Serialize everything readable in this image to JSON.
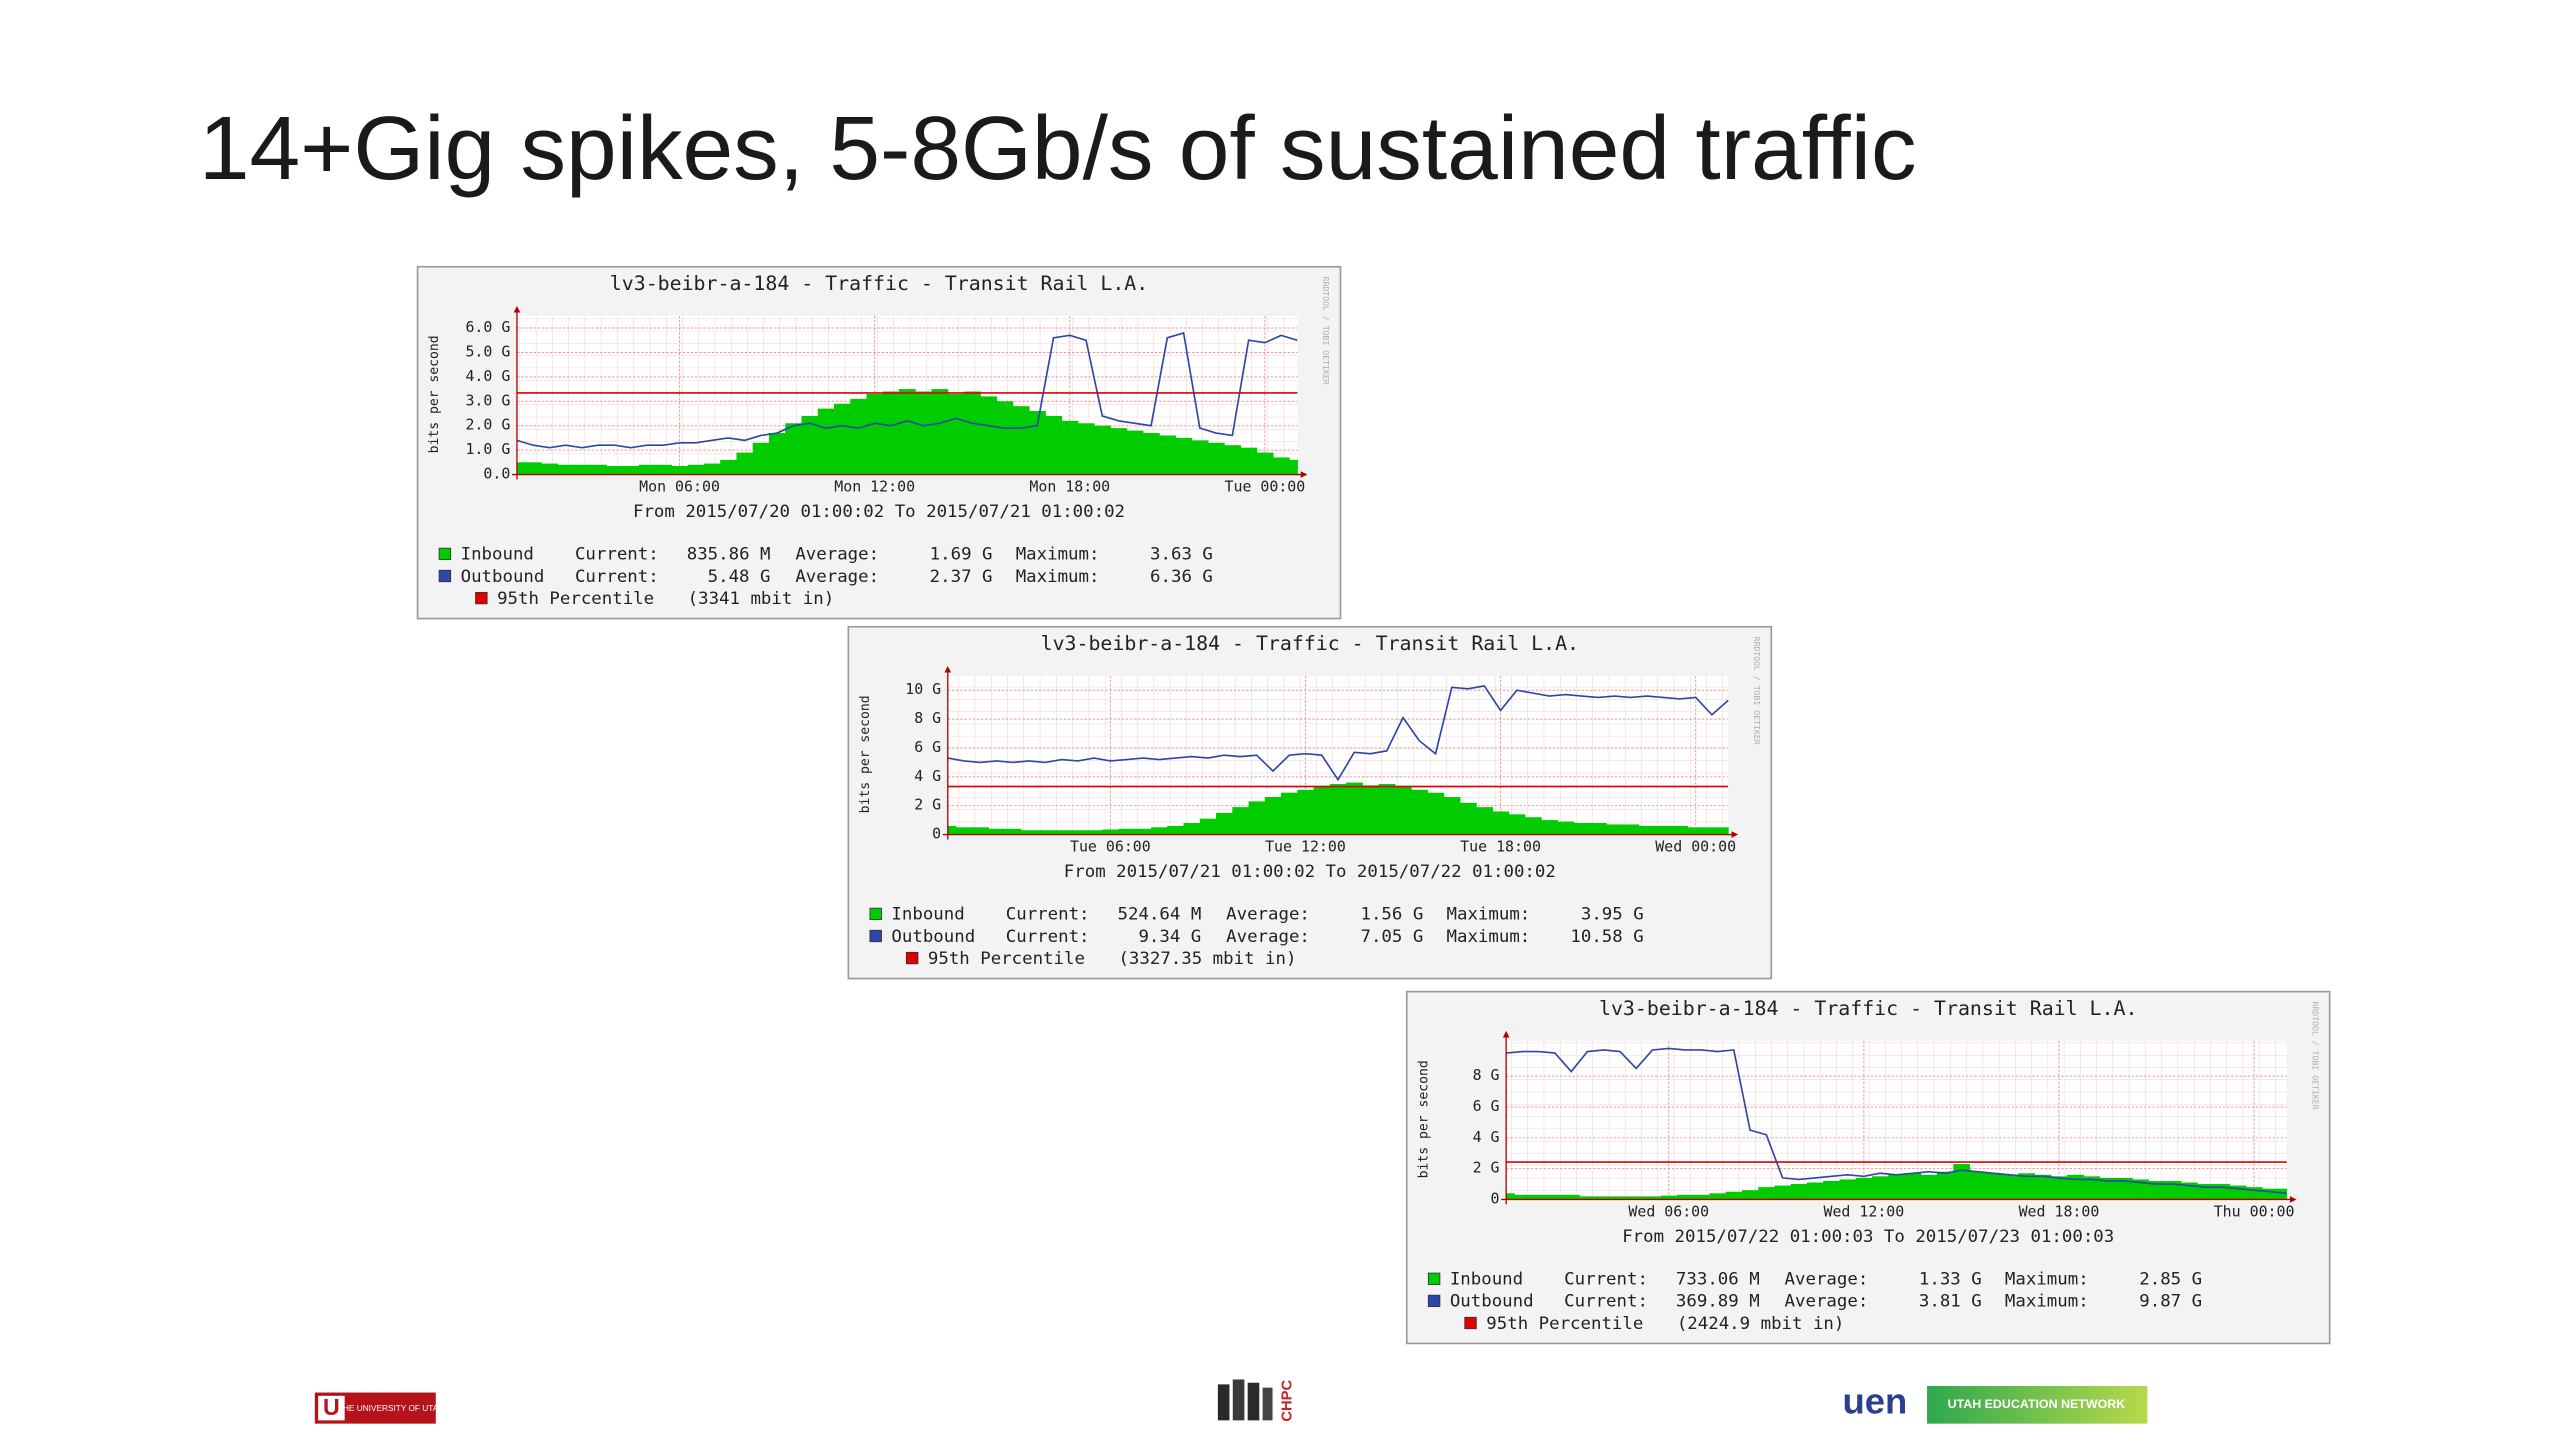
{
  "title": "14+Gig spikes, 5-8Gb/s of sustained traffic",
  "chart_data": [
    {
      "type": "area",
      "title": "lv3-beibr-a-184 - Traffic - Transit Rail L.A.",
      "subtitle": "From 2015/07/20 01:00:02 To 2015/07/21 01:00:02",
      "y_label": "bits per second",
      "watermark": "RRDTOOL / TOBI OETIKER",
      "x": [
        0,
        0.5,
        1,
        1.5,
        2,
        2.5,
        3,
        3.5,
        4,
        4.5,
        5,
        5.5,
        6,
        6.5,
        7,
        7.5,
        8,
        8.5,
        9,
        9.5,
        10,
        10.5,
        11,
        11.5,
        12,
        12.5,
        13,
        13.5,
        14,
        14.5,
        15,
        15.5,
        16,
        16.5,
        17,
        17.5,
        18,
        18.5,
        19,
        19.5,
        20,
        20.5,
        21,
        21.5,
        22,
        22.5,
        23,
        23.5,
        24
      ],
      "xlim": [
        0,
        24
      ],
      "xticks": [
        {
          "value": 5,
          "label": "Mon 06:00"
        },
        {
          "value": 11,
          "label": "Mon 12:00"
        },
        {
          "value": 17,
          "label": "Mon 18:00"
        },
        {
          "value": 23,
          "label": "Tue 00:00"
        }
      ],
      "ylim": [
        0,
        6.5
      ],
      "yticks": [
        {
          "value": 0,
          "label": "0.0"
        },
        {
          "value": 1,
          "label": "1.0 G"
        },
        {
          "value": 2,
          "label": "2.0 G"
        },
        {
          "value": 3,
          "label": "3.0 G"
        },
        {
          "value": 4,
          "label": "4.0 G"
        },
        {
          "value": 5,
          "label": "5.0 G"
        },
        {
          "value": 6,
          "label": "6.0 G"
        }
      ],
      "grid": true,
      "series": [
        {
          "name": "Inbound",
          "color": "#00cc00",
          "style": "area",
          "values": [
            0.5,
            0.5,
            0.45,
            0.4,
            0.4,
            0.4,
            0.35,
            0.35,
            0.4,
            0.4,
            0.35,
            0.4,
            0.45,
            0.6,
            0.9,
            1.3,
            1.7,
            2.1,
            2.4,
            2.7,
            2.9,
            3.1,
            3.3,
            3.4,
            3.5,
            3.4,
            3.5,
            3.3,
            3.4,
            3.2,
            3.0,
            2.8,
            2.6,
            2.4,
            2.2,
            2.1,
            2.0,
            1.9,
            1.8,
            1.7,
            1.6,
            1.5,
            1.4,
            1.3,
            1.2,
            1.1,
            0.9,
            0.7,
            0.6
          ]
        },
        {
          "name": "Outbound",
          "color": "#2b47a8",
          "style": "line",
          "values": [
            1.4,
            1.2,
            1.1,
            1.2,
            1.1,
            1.2,
            1.2,
            1.1,
            1.2,
            1.2,
            1.3,
            1.3,
            1.4,
            1.5,
            1.4,
            1.6,
            1.7,
            2.0,
            2.1,
            1.9,
            2.0,
            1.9,
            2.1,
            2.0,
            2.2,
            2.0,
            2.1,
            2.3,
            2.1,
            2.0,
            1.9,
            1.9,
            2.0,
            5.6,
            5.7,
            5.5,
            2.4,
            2.2,
            2.1,
            2.0,
            5.6,
            5.8,
            1.9,
            1.7,
            1.6,
            5.5,
            5.4,
            5.7,
            5.5
          ]
        }
      ],
      "percentile": {
        "name": "95th Percentile",
        "label": "(3341 mbit in)",
        "value": 3.341,
        "color": "#e00000"
      },
      "legend_stats": [
        [
          "Current:",
          "835.86 M",
          "Average:",
          "1.69 G",
          "Maximum:",
          "3.63 G"
        ],
        [
          "Current:",
          "5.48 G",
          "Average:",
          "2.37 G",
          "Maximum:",
          "6.36 G"
        ]
      ]
    },
    {
      "type": "area",
      "title": "lv3-beibr-a-184 - Traffic - Transit Rail L.A.",
      "subtitle": "From 2015/07/21 01:00:02 To 2015/07/22 01:00:02",
      "y_label": "bits per second",
      "watermark": "RRDTOOL / TOBI OETIKER",
      "x": [
        0,
        0.5,
        1,
        1.5,
        2,
        2.5,
        3,
        3.5,
        4,
        4.5,
        5,
        5.5,
        6,
        6.5,
        7,
        7.5,
        8,
        8.5,
        9,
        9.5,
        10,
        10.5,
        11,
        11.5,
        12,
        12.5,
        13,
        13.5,
        14,
        14.5,
        15,
        15.5,
        16,
        16.5,
        17,
        17.5,
        18,
        18.5,
        19,
        19.5,
        20,
        20.5,
        21,
        21.5,
        22,
        22.5,
        23,
        23.5,
        24
      ],
      "xlim": [
        0,
        24
      ],
      "xticks": [
        {
          "value": 5,
          "label": "Tue 06:00"
        },
        {
          "value": 11,
          "label": "Tue 12:00"
        },
        {
          "value": 17,
          "label": "Tue 18:00"
        },
        {
          "value": 23,
          "label": "Wed 00:00"
        }
      ],
      "ylim": [
        0,
        11
      ],
      "yticks": [
        0,
        {
          "value": 2,
          "label": "2 G"
        },
        {
          "value": 4,
          "label": "4 G"
        },
        {
          "value": 6,
          "label": "6 G"
        },
        {
          "value": 8,
          "label": "8 G"
        },
        {
          "value": 10,
          "label": "10 G"
        }
      ],
      "grid": true,
      "series": [
        {
          "name": "Inbound",
          "color": "#00cc00",
          "style": "area",
          "values": [
            0.6,
            0.5,
            0.5,
            0.4,
            0.4,
            0.3,
            0.3,
            0.3,
            0.3,
            0.3,
            0.35,
            0.4,
            0.4,
            0.5,
            0.6,
            0.8,
            1.1,
            1.5,
            1.9,
            2.3,
            2.6,
            2.9,
            3.1,
            3.3,
            3.5,
            3.6,
            3.4,
            3.5,
            3.3,
            3.1,
            2.9,
            2.6,
            2.2,
            1.9,
            1.6,
            1.4,
            1.2,
            1.0,
            0.9,
            0.8,
            0.8,
            0.7,
            0.7,
            0.6,
            0.6,
            0.6,
            0.5,
            0.5,
            0.5
          ]
        },
        {
          "name": "Outbound",
          "color": "#2b47a8",
          "style": "line",
          "values": [
            5.3,
            5.1,
            5.0,
            5.1,
            5.0,
            5.1,
            5.0,
            5.2,
            5.1,
            5.3,
            5.1,
            5.2,
            5.3,
            5.2,
            5.3,
            5.4,
            5.3,
            5.5,
            5.4,
            5.5,
            4.4,
            5.5,
            5.6,
            5.5,
            3.8,
            5.7,
            5.6,
            5.8,
            8.1,
            6.5,
            5.6,
            10.2,
            10.1,
            10.3,
            8.6,
            10.0,
            9.8,
            9.6,
            9.7,
            9.6,
            9.5,
            9.6,
            9.5,
            9.6,
            9.5,
            9.4,
            9.5,
            8.3,
            9.3
          ]
        }
      ],
      "percentile": {
        "name": "95th Percentile",
        "label": "(3327.35 mbit in)",
        "value": 3.32735,
        "color": "#e00000"
      },
      "legend_stats": [
        [
          "Current:",
          "524.64 M",
          "Average:",
          "1.56 G",
          "Maximum:",
          "3.95 G"
        ],
        [
          "Current:",
          "9.34 G",
          "Average:",
          "7.05 G",
          "Maximum:",
          "10.58 G"
        ]
      ]
    },
    {
      "type": "area",
      "title": "lv3-beibr-a-184 - Traffic - Transit Rail L.A.",
      "subtitle": "From 2015/07/22 01:00:03 To 2015/07/23 01:00:03",
      "y_label": "bits per second",
      "watermark": "RRDTOOL / TOBI OETIKER",
      "x": [
        0,
        0.5,
        1,
        1.5,
        2,
        2.5,
        3,
        3.5,
        4,
        4.5,
        5,
        5.5,
        6,
        6.5,
        7,
        7.5,
        8,
        8.5,
        9,
        9.5,
        10,
        10.5,
        11,
        11.5,
        12,
        12.5,
        13,
        13.5,
        14,
        14.5,
        15,
        15.5,
        16,
        16.5,
        17,
        17.5,
        18,
        18.5,
        19,
        19.5,
        20,
        20.5,
        21,
        21.5,
        22,
        22.5,
        23,
        23.5,
        24
      ],
      "xlim": [
        0,
        24
      ],
      "xticks": [
        {
          "value": 5,
          "label": "Wed 06:00"
        },
        {
          "value": 11,
          "label": "Wed 12:00"
        },
        {
          "value": 17,
          "label": "Wed 18:00"
        },
        {
          "value": 23,
          "label": "Thu 00:00"
        }
      ],
      "ylim": [
        0,
        10.3
      ],
      "yticks": [
        0,
        {
          "value": 2,
          "label": "2 G"
        },
        {
          "value": 4,
          "label": "4 G"
        },
        {
          "value": 6,
          "label": "6 G"
        },
        {
          "value": 8,
          "label": "8 G"
        }
      ],
      "grid": true,
      "series": [
        {
          "name": "Inbound",
          "color": "#00cc00",
          "style": "area",
          "values": [
            0.4,
            0.3,
            0.3,
            0.3,
            0.3,
            0.2,
            0.2,
            0.2,
            0.2,
            0.2,
            0.25,
            0.3,
            0.3,
            0.4,
            0.5,
            0.6,
            0.8,
            0.9,
            1.0,
            1.1,
            1.2,
            1.3,
            1.4,
            1.5,
            1.6,
            1.7,
            1.6,
            1.8,
            2.3,
            1.8,
            1.7,
            1.6,
            1.7,
            1.6,
            1.5,
            1.6,
            1.5,
            1.4,
            1.4,
            1.3,
            1.2,
            1.2,
            1.1,
            1.0,
            1.0,
            0.9,
            0.8,
            0.7,
            0.7
          ]
        },
        {
          "name": "Outbound",
          "color": "#2b47a8",
          "style": "line",
          "values": [
            9.5,
            9.6,
            9.6,
            9.5,
            8.3,
            9.6,
            9.7,
            9.6,
            8.5,
            9.7,
            9.8,
            9.7,
            9.7,
            9.6,
            9.7,
            4.5,
            4.2,
            1.4,
            1.3,
            1.4,
            1.5,
            1.6,
            1.5,
            1.7,
            1.6,
            1.7,
            1.8,
            1.7,
            1.9,
            1.8,
            1.7,
            1.6,
            1.5,
            1.5,
            1.4,
            1.3,
            1.3,
            1.2,
            1.2,
            1.1,
            1.0,
            1.0,
            0.9,
            0.8,
            0.8,
            0.7,
            0.6,
            0.5,
            0.4
          ]
        }
      ],
      "percentile": {
        "name": "95th Percentile",
        "label": "(2424.9 mbit in)",
        "value": 2.4249,
        "color": "#e00000"
      },
      "legend_stats": [
        [
          "Current:",
          "733.06 M",
          "Average:",
          "1.33 G",
          "Maximum:",
          "2.85 G"
        ],
        [
          "Current:",
          "369.89 M",
          "Average:",
          "3.81 G",
          "Maximum:",
          "9.87 G"
        ]
      ]
    }
  ],
  "footer": {
    "utah_mark": "U",
    "utah": "THE UNIVERSITY OF UTAH",
    "chpc": "CHPC",
    "uen": "uen",
    "uen_name": "UTAH EDUCATION NETWORK"
  }
}
